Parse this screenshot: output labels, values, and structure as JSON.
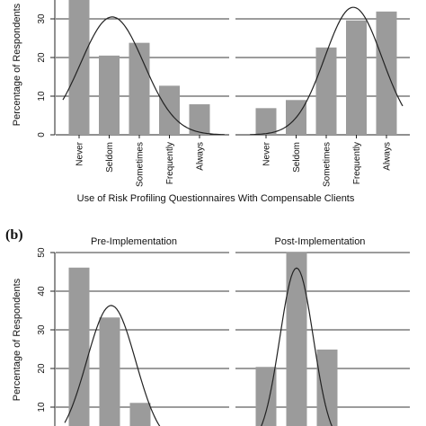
{
  "panel_b_label": "(b)",
  "chart_data": [
    {
      "type": "bar",
      "panel": "a",
      "ylabel": "Percentage of Respondents",
      "xlabel": "Use of Risk Profiling Questionnaires With Compensable Clients",
      "ylim": [
        0,
        35
      ],
      "yticks": [
        0,
        10,
        20,
        30
      ],
      "grid": true,
      "categories": [
        "Never",
        "Seldom",
        "Sometimes",
        "Frequently",
        "Always"
      ],
      "series": [
        {
          "values": [
            35.5,
            20.5,
            23.8,
            12.7,
            7.9
          ]
        },
        {
          "values": [
            6.9,
            9.0,
            22.6,
            29.6,
            31.9
          ]
        }
      ],
      "normal_curves": [
        {
          "mean": 2.1,
          "sd": 1.05,
          "peak": 30.5
        },
        {
          "mean": 3.9,
          "sd": 0.95,
          "peak": 33.0
        }
      ]
    },
    {
      "type": "bar",
      "panel": "b",
      "ylabel": "Percentage of Respondents",
      "ylim": [
        7,
        50
      ],
      "yticks": [
        10,
        20,
        30,
        40,
        50
      ],
      "grid": true,
      "facets": [
        "Pre-Implementation",
        "Post-Implementation"
      ],
      "series": [
        {
          "name": "Pre-Implementation",
          "values": [
            46.1,
            33.2,
            11.1
          ]
        },
        {
          "name": "Post-Implementation",
          "values": [
            20.4,
            50.2,
            24.9
          ]
        }
      ],
      "normal_curves": [
        {
          "mean": 2.05,
          "sd": 0.8,
          "peak": 36.3
        },
        {
          "mean": 2.0,
          "sd": 0.55,
          "peak": 46.0
        }
      ]
    }
  ]
}
